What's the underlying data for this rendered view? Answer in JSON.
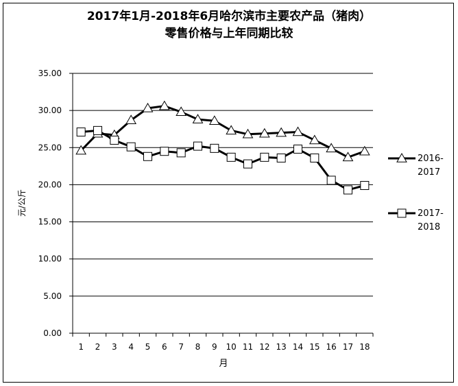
{
  "chart_data": {
    "type": "line",
    "title": "2017年1月-2018年6月哈尔滨市主要农产品（猪肉）",
    "subtitle": "零售价格与上年同期比较",
    "xlabel": "月",
    "ylabel": "元/公斤",
    "ylim": [
      0,
      35
    ],
    "yticks": [
      "0.00",
      "5.00",
      "10.00",
      "15.00",
      "20.00",
      "25.00",
      "30.00",
      "35.00"
    ],
    "categories": [
      "1",
      "2",
      "3",
      "4",
      "5",
      "6",
      "7",
      "8",
      "9",
      "10",
      "11",
      "12",
      "13",
      "14",
      "15",
      "16",
      "17",
      "18"
    ],
    "grid": "horizontal",
    "legend_position": "right",
    "series": [
      {
        "name_line1": "2016-",
        "name_line2": "2017",
        "marker": "triangle",
        "values": [
          24.6,
          26.9,
          26.7,
          28.7,
          30.3,
          30.6,
          29.8,
          28.8,
          28.6,
          27.3,
          26.8,
          26.9,
          27.0,
          27.1,
          26.0,
          24.9,
          23.7,
          24.5
        ]
      },
      {
        "name_line1": "2017-",
        "name_line2": "2018",
        "marker": "square",
        "values": [
          27.1,
          27.3,
          26.0,
          25.1,
          23.8,
          24.5,
          24.3,
          25.2,
          24.9,
          23.7,
          22.8,
          23.7,
          23.6,
          24.8,
          23.6,
          20.6,
          19.3,
          19.9
        ]
      }
    ]
  }
}
